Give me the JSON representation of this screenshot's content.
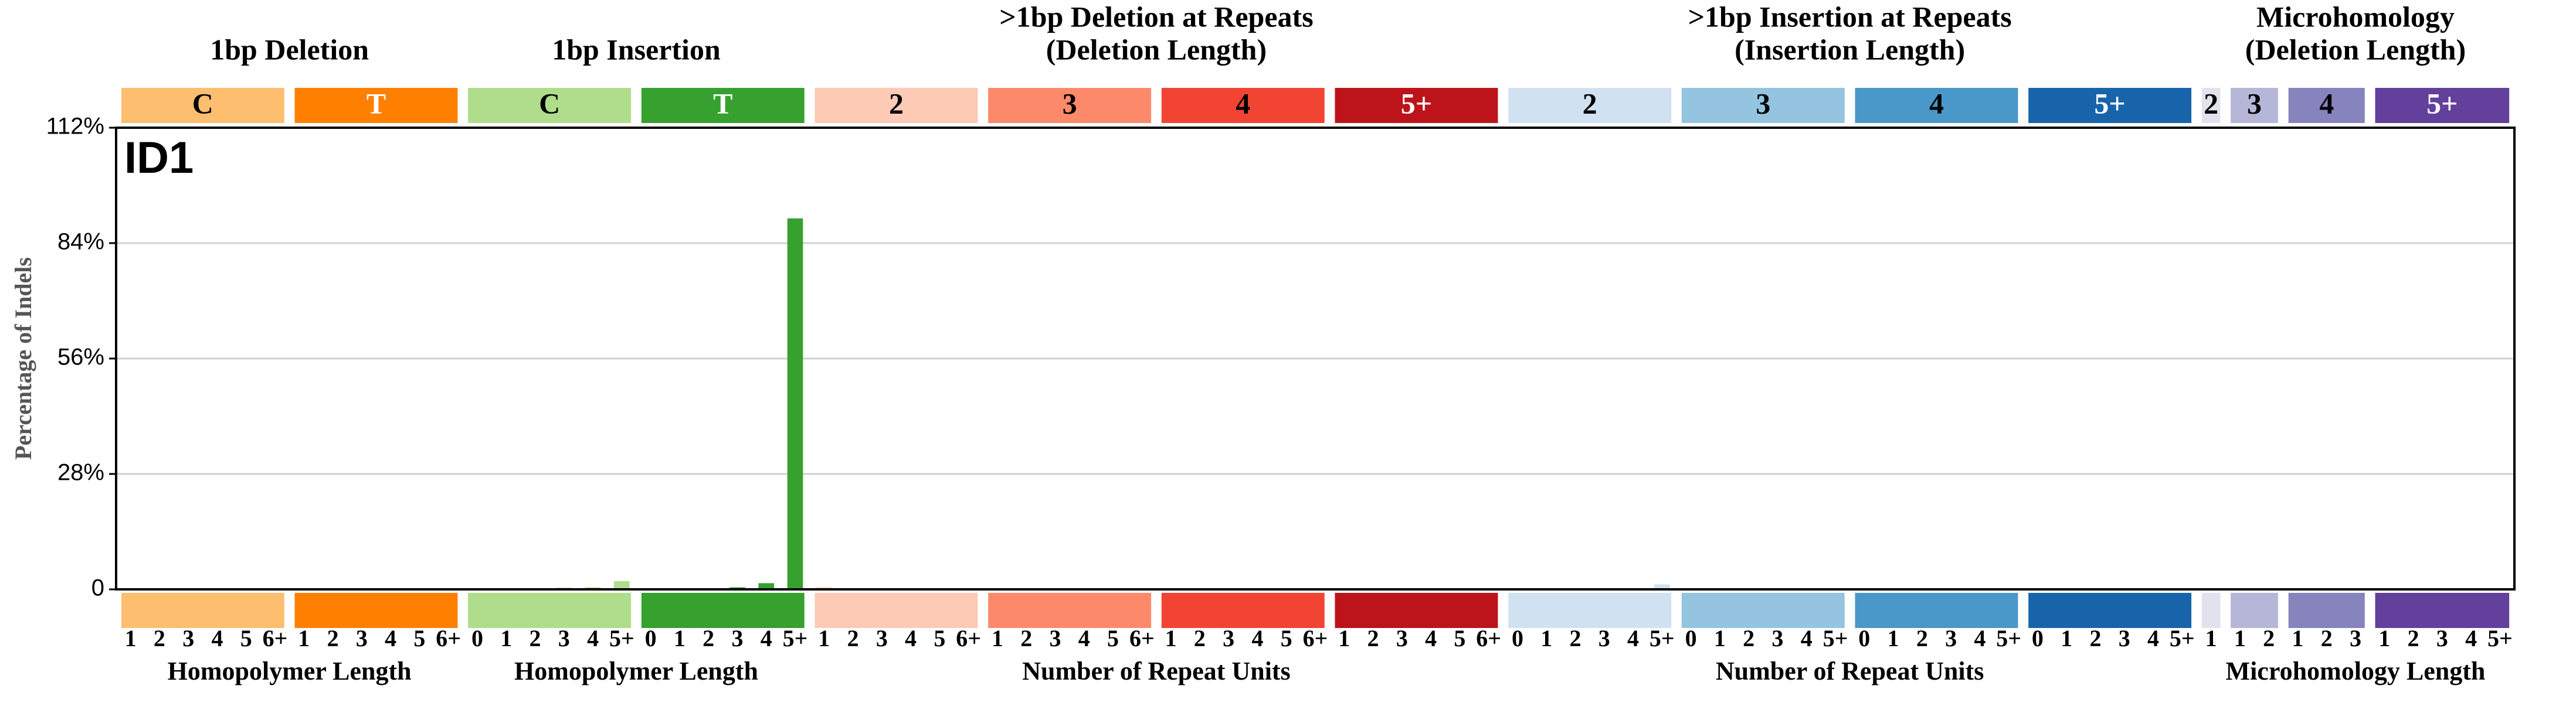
{
  "chart_data": {
    "type": "bar",
    "title": "ID1",
    "ylabel": "Percentage of Indels",
    "ylim": [
      0,
      112
    ],
    "yticks": [
      0,
      {
        "value": 28,
        "label": "28%"
      },
      {
        "value": 56,
        "label": "56%"
      },
      {
        "value": 84,
        "label": "84%"
      },
      {
        "value": 112,
        "label": "112%"
      }
    ],
    "grid": true,
    "sections": [
      {
        "title": [
          "1bp Deletion"
        ],
        "xlabel": "Homopolymer Length",
        "groups": [
          {
            "label": "C",
            "color": "#FDBE6F",
            "text_color": "#000000",
            "categories": [
              "1",
              "2",
              "3",
              "4",
              "5",
              "6+"
            ],
            "values": [
              0.3,
              0.2,
              0.1,
              0.1,
              0.1,
              0.1
            ]
          },
          {
            "label": "T",
            "color": "#FF8001",
            "text_color": "#ffffff",
            "categories": [
              "1",
              "2",
              "3",
              "4",
              "5",
              "6+"
            ],
            "values": [
              0.3,
              0.2,
              0.2,
              0.1,
              0.2,
              0.3
            ]
          }
        ]
      },
      {
        "title": [
          "1bp Insertion"
        ],
        "xlabel": "Homopolymer Length",
        "groups": [
          {
            "label": "C",
            "color": "#B0DD8B",
            "text_color": "#000000",
            "categories": [
              "0",
              "1",
              "2",
              "3",
              "4",
              "5+"
            ],
            "values": [
              0.1,
              0.2,
              0.3,
              0.4,
              0.5,
              2
            ]
          },
          {
            "label": "T",
            "color": "#36A12E",
            "text_color": "#ffffff",
            "categories": [
              "0",
              "1",
              "2",
              "3",
              "4",
              "5+"
            ],
            "values": [
              0.1,
              0.1,
              0.2,
              0.5,
              1.5,
              90
            ]
          }
        ]
      },
      {
        "title": [
          ">1bp Deletion at Repeats",
          "(Deletion Length)"
        ],
        "xlabel": "Number of Repeat Units",
        "groups": [
          {
            "label": "2",
            "color": "#FDCAB5",
            "text_color": "#000000",
            "categories": [
              "1",
              "2",
              "3",
              "4",
              "5",
              "6+"
            ],
            "values": [
              0.5,
              0.1,
              0,
              0,
              0,
              0
            ]
          },
          {
            "label": "3",
            "color": "#FC8A6A",
            "text_color": "#000000",
            "categories": [
              "1",
              "2",
              "3",
              "4",
              "5",
              "6+"
            ],
            "values": [
              0.2,
              0.1,
              0.1,
              0,
              0,
              0
            ]
          },
          {
            "label": "4",
            "color": "#F14432",
            "text_color": "#000000",
            "categories": [
              "1",
              "2",
              "3",
              "4",
              "5",
              "6+"
            ],
            "values": [
              0.2,
              0.1,
              0,
              0,
              0,
              0
            ]
          },
          {
            "label": "5+",
            "color": "#BC141A",
            "text_color": "#ffffff",
            "categories": [
              "1",
              "2",
              "3",
              "4",
              "5",
              "6+"
            ],
            "values": [
              0.1,
              0.1,
              0,
              0,
              0,
              0
            ]
          }
        ]
      },
      {
        "title": [
          ">1bp Insertion at Repeats",
          "(Insertion Length)"
        ],
        "xlabel": "Number of Repeat Units",
        "groups": [
          {
            "label": "2",
            "color": "#D0E1F2",
            "text_color": "#000000",
            "categories": [
              "0",
              "1",
              "2",
              "3",
              "4",
              "5+"
            ],
            "values": [
              0.2,
              0.1,
              0.1,
              0.2,
              0.3,
              1.2
            ]
          },
          {
            "label": "3",
            "color": "#94C4DF",
            "text_color": "#000000",
            "categories": [
              "0",
              "1",
              "2",
              "3",
              "4",
              "5+"
            ],
            "values": [
              0.1,
              0.1,
              0,
              0,
              0,
              0.1
            ]
          },
          {
            "label": "4",
            "color": "#4A98C9",
            "text_color": "#000000",
            "categories": [
              "0",
              "1",
              "2",
              "3",
              "4",
              "5+"
            ],
            "values": [
              0.1,
              0.1,
              0.1,
              0,
              0,
              0
            ]
          },
          {
            "label": "5+",
            "color": "#1764AB",
            "text_color": "#ffffff",
            "categories": [
              "0",
              "1",
              "2",
              "3",
              "4",
              "5+"
            ],
            "values": [
              0.1,
              0,
              0,
              0,
              0,
              0
            ]
          }
        ]
      },
      {
        "title": [
          "Microhomology",
          "(Deletion Length)"
        ],
        "xlabel": "Microhomology Length",
        "groups": [
          {
            "label": "2",
            "color": "#E2E2EF",
            "text_color": "#000000",
            "categories": [
              "1"
            ],
            "values": [
              0.1
            ]
          },
          {
            "label": "3",
            "color": "#B6B6D8",
            "text_color": "#000000",
            "categories": [
              "1",
              "2"
            ],
            "values": [
              0.1,
              0
            ]
          },
          {
            "label": "4",
            "color": "#8683BD",
            "text_color": "#000000",
            "categories": [
              "1",
              "2",
              "3"
            ],
            "values": [
              0.1,
              0,
              0
            ]
          },
          {
            "label": "5+",
            "color": "#62409B",
            "text_color": "#ffffff",
            "categories": [
              "1",
              "2",
              "3",
              "4",
              "5+"
            ],
            "values": [
              0.1,
              0,
              0,
              0,
              0.1
            ]
          }
        ]
      }
    ]
  }
}
